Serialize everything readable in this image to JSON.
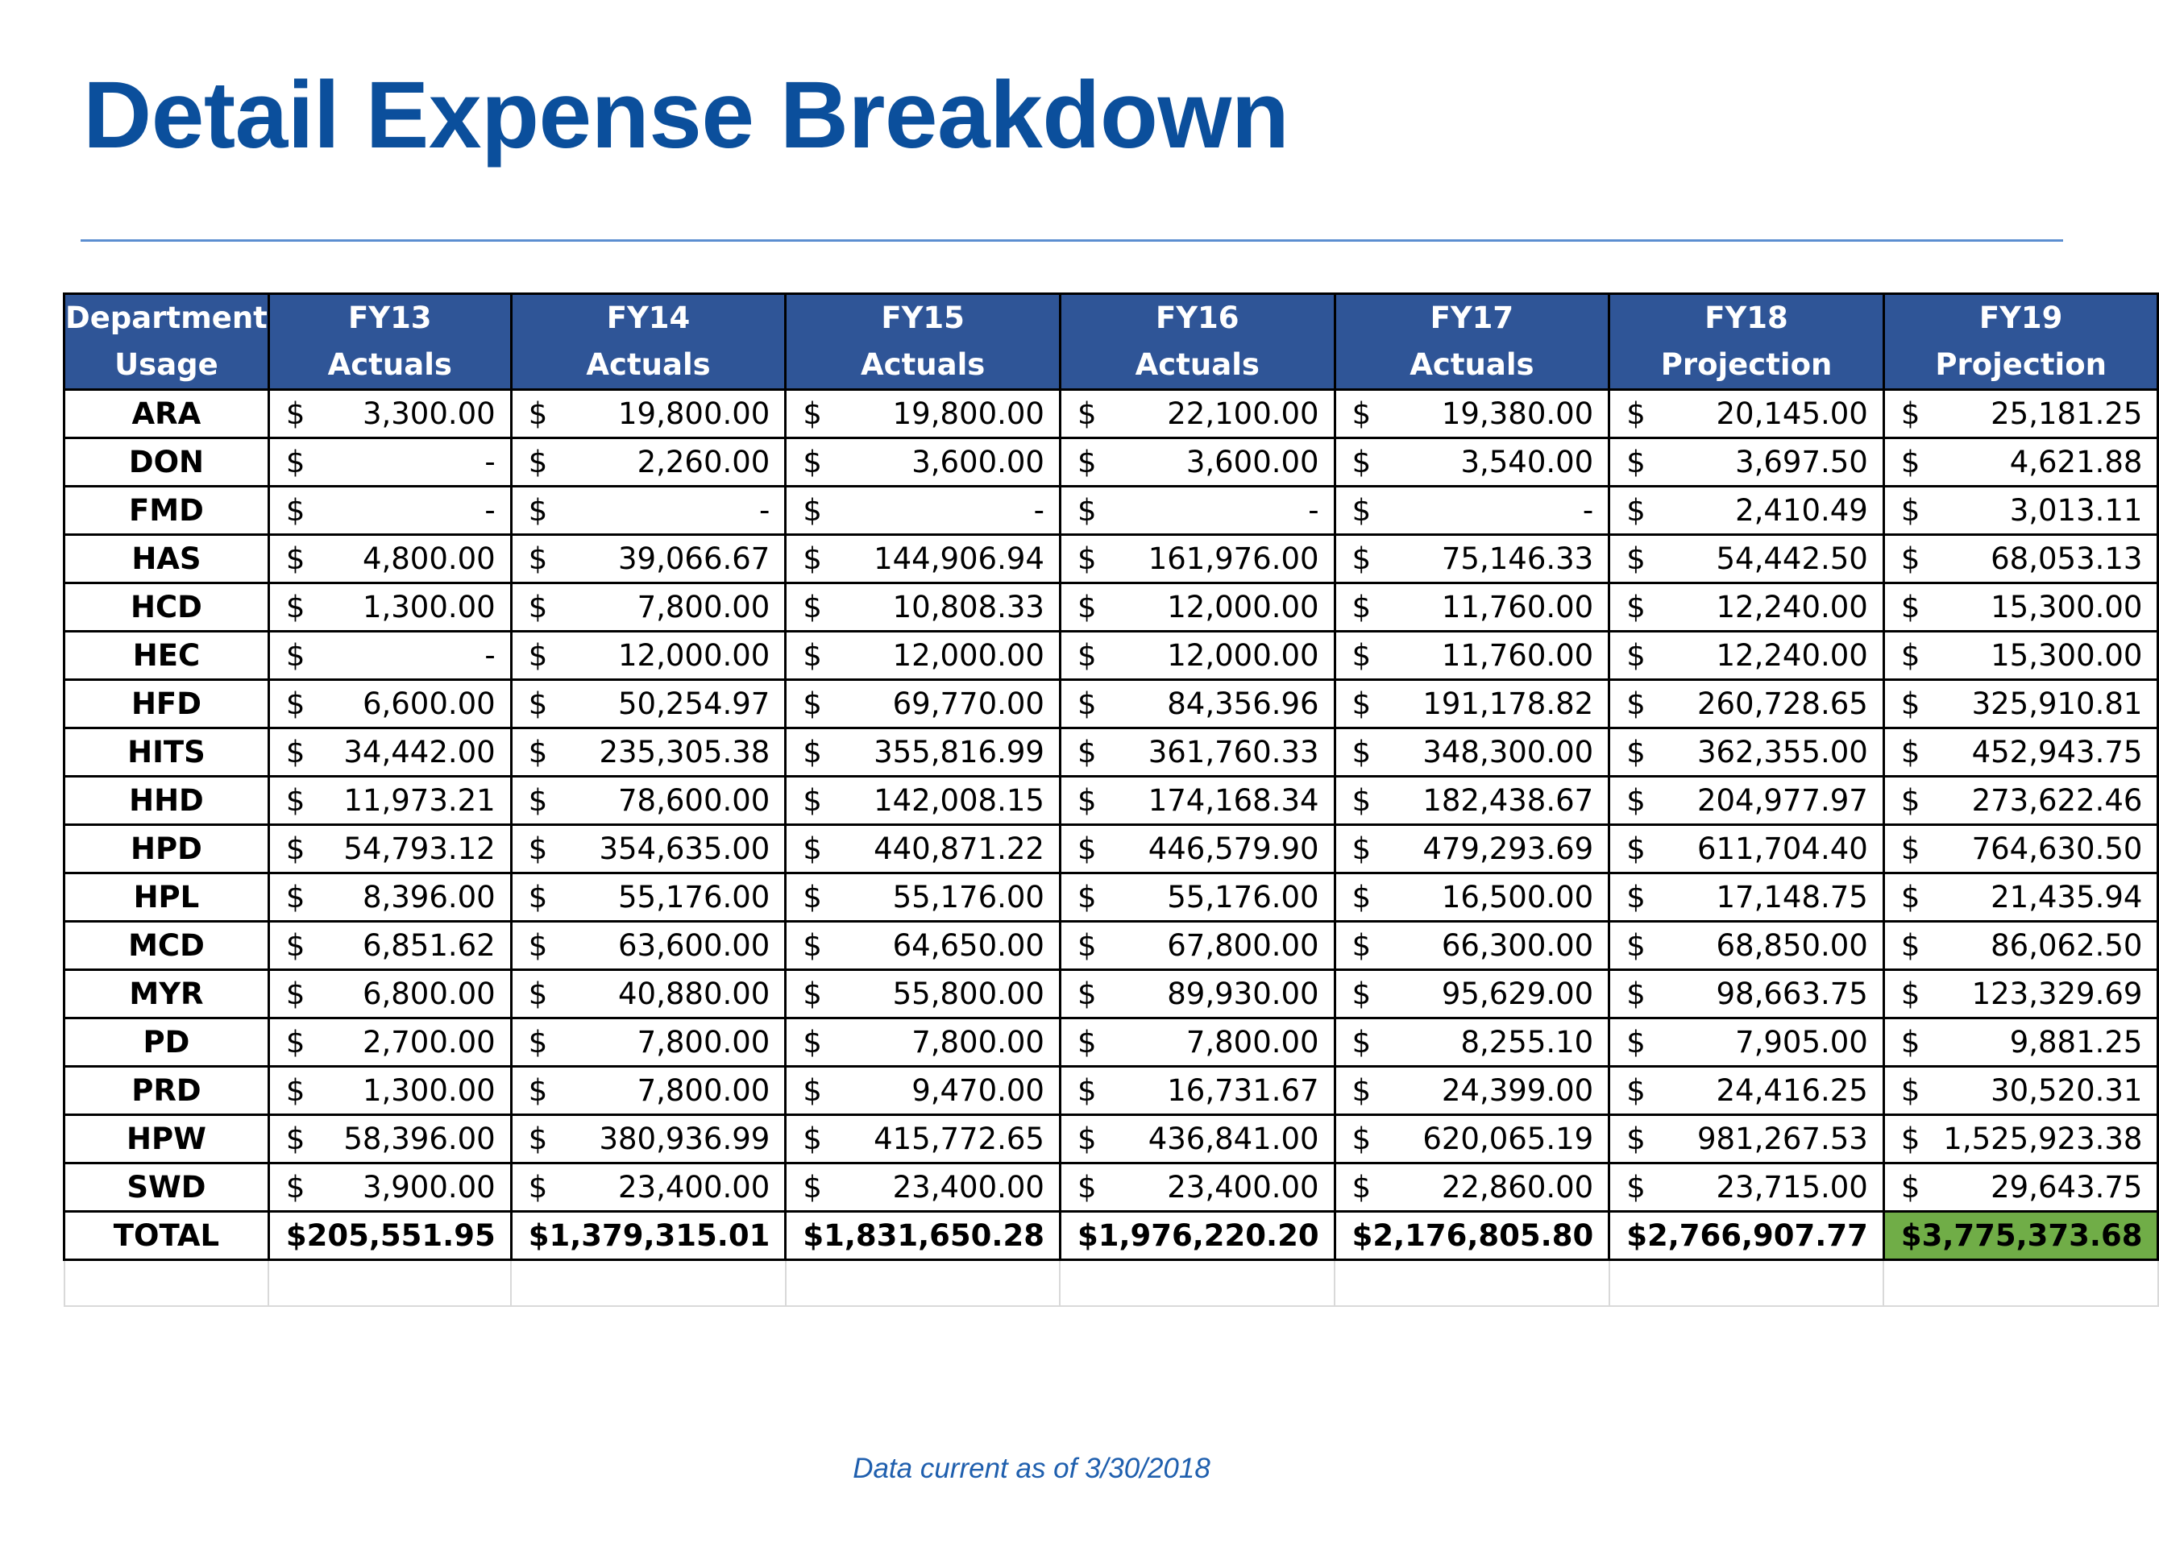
{
  "title": "Detail Expense Breakdown",
  "footer": "Data current as of 3/30/2018",
  "colors": {
    "title": "#0b4f9c",
    "header_bg": "#2f5597",
    "highlight": "#70ad47"
  },
  "table": {
    "headers": [
      {
        "line1": "Department",
        "line2": "Usage"
      },
      {
        "line1": "FY13",
        "line2": "Actuals"
      },
      {
        "line1": "FY14",
        "line2": "Actuals"
      },
      {
        "line1": "FY15",
        "line2": "Actuals"
      },
      {
        "line1": "FY16",
        "line2": "Actuals"
      },
      {
        "line1": "FY17",
        "line2": "Actuals"
      },
      {
        "line1": "FY18",
        "line2": "Projection"
      },
      {
        "line1": "FY19",
        "line2": "Projection"
      }
    ],
    "currency_symbol": "$",
    "rows": [
      {
        "dept": "ARA",
        "values": [
          "3,300.00",
          "19,800.00",
          "19,800.00",
          "22,100.00",
          "19,380.00",
          "20,145.00",
          "25,181.25"
        ]
      },
      {
        "dept": "DON",
        "values": [
          "-",
          "2,260.00",
          "3,600.00",
          "3,600.00",
          "3,540.00",
          "3,697.50",
          "4,621.88"
        ]
      },
      {
        "dept": "FMD",
        "values": [
          "-",
          "-",
          "-",
          "-",
          "-",
          "2,410.49",
          "3,013.11"
        ]
      },
      {
        "dept": "HAS",
        "values": [
          "4,800.00",
          "39,066.67",
          "144,906.94",
          "161,976.00",
          "75,146.33",
          "54,442.50",
          "68,053.13"
        ]
      },
      {
        "dept": "HCD",
        "values": [
          "1,300.00",
          "7,800.00",
          "10,808.33",
          "12,000.00",
          "11,760.00",
          "12,240.00",
          "15,300.00"
        ]
      },
      {
        "dept": "HEC",
        "values": [
          "-",
          "12,000.00",
          "12,000.00",
          "12,000.00",
          "11,760.00",
          "12,240.00",
          "15,300.00"
        ]
      },
      {
        "dept": "HFD",
        "values": [
          "6,600.00",
          "50,254.97",
          "69,770.00",
          "84,356.96",
          "191,178.82",
          "260,728.65",
          "325,910.81"
        ]
      },
      {
        "dept": "HITS",
        "values": [
          "34,442.00",
          "235,305.38",
          "355,816.99",
          "361,760.33",
          "348,300.00",
          "362,355.00",
          "452,943.75"
        ]
      },
      {
        "dept": "HHD",
        "values": [
          "11,973.21",
          "78,600.00",
          "142,008.15",
          "174,168.34",
          "182,438.67",
          "204,977.97",
          "273,622.46"
        ]
      },
      {
        "dept": "HPD",
        "values": [
          "54,793.12",
          "354,635.00",
          "440,871.22",
          "446,579.90",
          "479,293.69",
          "611,704.40",
          "764,630.50"
        ]
      },
      {
        "dept": "HPL",
        "values": [
          "8,396.00",
          "55,176.00",
          "55,176.00",
          "55,176.00",
          "16,500.00",
          "17,148.75",
          "21,435.94"
        ]
      },
      {
        "dept": "MCD",
        "values": [
          "6,851.62",
          "63,600.00",
          "64,650.00",
          "67,800.00",
          "66,300.00",
          "68,850.00",
          "86,062.50"
        ]
      },
      {
        "dept": "MYR",
        "values": [
          "6,800.00",
          "40,880.00",
          "55,800.00",
          "89,930.00",
          "95,629.00",
          "98,663.75",
          "123,329.69"
        ]
      },
      {
        "dept": "PD",
        "values": [
          "2,700.00",
          "7,800.00",
          "7,800.00",
          "7,800.00",
          "8,255.10",
          "7,905.00",
          "9,881.25"
        ]
      },
      {
        "dept": "PRD",
        "values": [
          "1,300.00",
          "7,800.00",
          "9,470.00",
          "16,731.67",
          "24,399.00",
          "24,416.25",
          "30,520.31"
        ]
      },
      {
        "dept": "HPW",
        "values": [
          "58,396.00",
          "380,936.99",
          "415,772.65",
          "436,841.00",
          "620,065.19",
          "981,267.53",
          "1,525,923.38"
        ]
      },
      {
        "dept": "SWD",
        "values": [
          "3,900.00",
          "23,400.00",
          "23,400.00",
          "23,400.00",
          "22,860.00",
          "23,715.00",
          "29,643.75"
        ]
      }
    ],
    "total": {
      "label": "TOTAL",
      "values": [
        "205,551.95",
        "1,379,315.01",
        "1,831,650.28",
        "1,976,220.20",
        "2,176,805.80",
        "2,766,907.77",
        "3,775,373.68"
      ]
    }
  }
}
